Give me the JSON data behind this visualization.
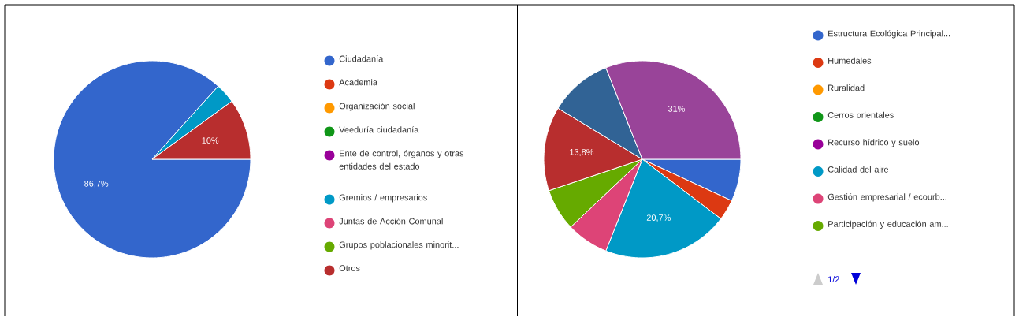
{
  "chart_data": [
    {
      "type": "pie",
      "categories": [
        "Ciudadanía",
        "Academia",
        "Organización social",
        "Veeduría ciudadanía",
        "Ente de control, órganos y otras entidades del estado",
        "Gremios / empresarios",
        "Juntas de Acción Comunal",
        "Grupos poblacionales minorit...",
        "Otros"
      ],
      "values": [
        86.7,
        0,
        0,
        0,
        0,
        3.3,
        0,
        0,
        10
      ],
      "colors": [
        "#3366cc",
        "#dc3912",
        "#ff9900",
        "#109618",
        "#990099",
        "#0099c6",
        "#dd4477",
        "#66aa00",
        "#b82e2e"
      ],
      "value_labels": [
        "86,7%",
        null,
        null,
        null,
        null,
        null,
        null,
        null,
        "10%"
      ],
      "legend": "right"
    },
    {
      "type": "pie",
      "categories": [
        "Estructura Ecológica Principal...",
        "Humedales",
        "Ruralidad",
        "Cerros orientales",
        "Recurso hídrico y suelo",
        "Calidad del aire",
        "Gestión empresarial / ecourb...",
        "Participación y educación am...",
        null,
        null,
        null
      ],
      "values": [
        6.9,
        3.4,
        0,
        0,
        0,
        20.7,
        6.9,
        6.9,
        13.8,
        10.3,
        31
      ],
      "colors": [
        "#3366cc",
        "#dc3912",
        "#ff9900",
        "#109618",
        "#990099",
        "#0099c6",
        "#dd4477",
        "#66aa00",
        "#b82e2e",
        "#316395",
        "#994499"
      ],
      "value_labels": [
        null,
        null,
        null,
        null,
        null,
        "20,7%",
        null,
        null,
        "13,8%",
        null,
        "31%"
      ],
      "legend": "right",
      "annotations": [
        "1/2"
      ]
    }
  ]
}
